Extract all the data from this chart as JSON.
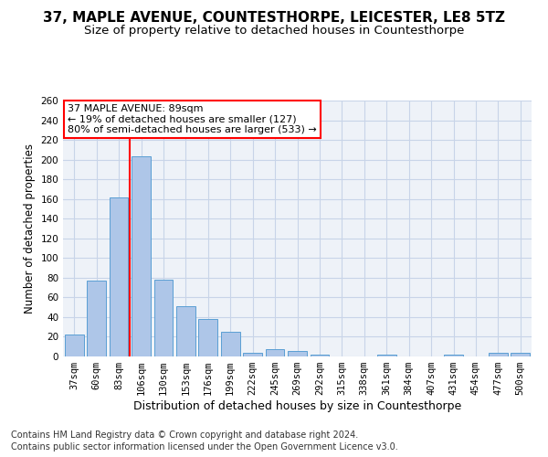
{
  "title": "37, MAPLE AVENUE, COUNTESTHORPE, LEICESTER, LE8 5TZ",
  "subtitle": "Size of property relative to detached houses in Countesthorpe",
  "xlabel": "Distribution of detached houses by size in Countesthorpe",
  "ylabel": "Number of detached properties",
  "footnote1": "Contains HM Land Registry data © Crown copyright and database right 2024.",
  "footnote2": "Contains public sector information licensed under the Open Government Licence v3.0.",
  "categories": [
    "37sqm",
    "60sqm",
    "83sqm",
    "106sqm",
    "130sqm",
    "153sqm",
    "176sqm",
    "199sqm",
    "222sqm",
    "245sqm",
    "269sqm",
    "292sqm",
    "315sqm",
    "338sqm",
    "361sqm",
    "384sqm",
    "407sqm",
    "431sqm",
    "454sqm",
    "477sqm",
    "500sqm"
  ],
  "values": [
    22,
    77,
    162,
    203,
    78,
    51,
    38,
    25,
    4,
    7,
    6,
    2,
    0,
    0,
    2,
    0,
    0,
    2,
    0,
    4,
    4
  ],
  "bar_color": "#aec6e8",
  "bar_edge_color": "#5a9fd4",
  "grid_color": "#c8d4e8",
  "bg_color": "#eef2f8",
  "red_line_x": 2.5,
  "annotation_line1": "37 MAPLE AVENUE: 89sqm",
  "annotation_line2": "← 19% of detached houses are smaller (127)",
  "annotation_line3": "80% of semi-detached houses are larger (533) →",
  "annotation_box_color": "white",
  "annotation_border_color": "red",
  "ylim": [
    0,
    260
  ],
  "yticks": [
    0,
    20,
    40,
    60,
    80,
    100,
    120,
    140,
    160,
    180,
    200,
    220,
    240,
    260
  ],
  "title_fontsize": 11,
  "subtitle_fontsize": 9.5,
  "xlabel_fontsize": 9,
  "ylabel_fontsize": 8.5,
  "tick_fontsize": 7.5,
  "annotation_fontsize": 8,
  "footnote_fontsize": 7
}
